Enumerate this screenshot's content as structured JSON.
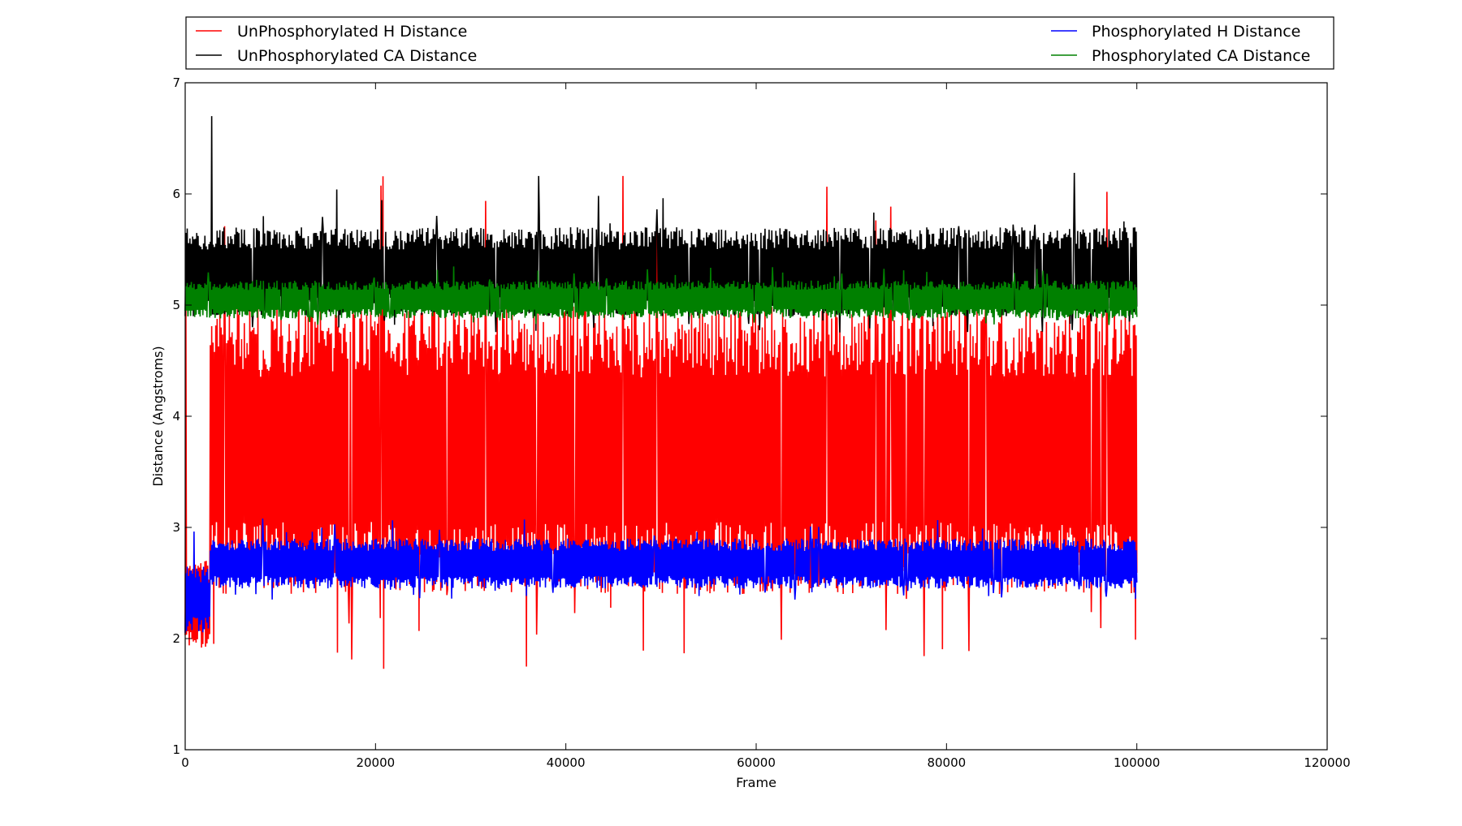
{
  "chart_data": {
    "type": "line",
    "title": "",
    "xlabel": "Frame",
    "ylabel": "Distance (Angstroms)",
    "xlim": [
      0,
      120000
    ],
    "ylim": [
      1,
      7
    ],
    "x_ticks": [
      0,
      20000,
      40000,
      60000,
      80000,
      100000,
      120000
    ],
    "x_tick_labels": [
      "0",
      "20000",
      "40000",
      "60000",
      "80000",
      "100000",
      "120000"
    ],
    "y_ticks": [
      1,
      2,
      3,
      4,
      5,
      6,
      7
    ],
    "y_tick_labels": [
      "1",
      "2",
      "3",
      "4",
      "5",
      "6",
      "7"
    ],
    "grid": false,
    "legend_placement": "above plot, two columns",
    "x_range_of_data": [
      0,
      100000
    ],
    "series": [
      {
        "name": "UnPhosphorylated H Distance",
        "color": "#ff0000",
        "band": [
          2.4,
          5.0
        ],
        "spikes_max": 6.2,
        "spikes_min": 1.7,
        "start_band": [
          1.9,
          2.7
        ]
      },
      {
        "name": "UnPhosphorylated CA Distance",
        "color": "#000000",
        "band": [
          4.9,
          5.7
        ],
        "spikes_max": 6.2,
        "spikes_min": 4.75,
        "peak": {
          "x": 2800,
          "y": 6.7
        }
      },
      {
        "name": "Phosphorylated H Distance",
        "color": "#0000ff",
        "band": [
          2.45,
          2.9
        ],
        "spikes_max": 3.1,
        "spikes_min": 2.35,
        "start_band": [
          2.05,
          2.65
        ]
      },
      {
        "name": "Phosphorylated CA Distance",
        "color": "#008000",
        "band": [
          4.88,
          5.22
        ],
        "spikes_max": 5.35,
        "spikes_min": 4.82
      }
    ]
  }
}
